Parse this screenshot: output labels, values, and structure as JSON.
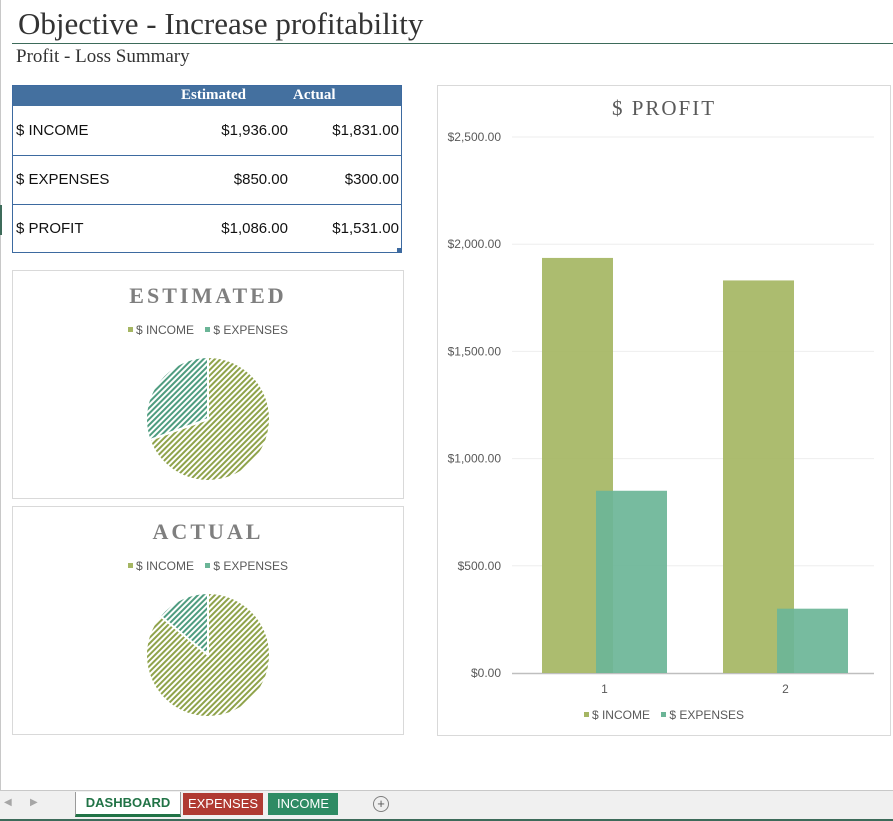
{
  "title": "Objective - Increase profitability",
  "subtitle": "Profit - Loss Summary",
  "summary": {
    "headers": {
      "estimated": "Estimated",
      "actual": "Actual"
    },
    "rows": [
      {
        "label": "$ INCOME",
        "estimated": "$1,936.00",
        "actual": "$1,831.00"
      },
      {
        "label": "$ EXPENSES",
        "estimated": "$850.00",
        "actual": "$300.00"
      },
      {
        "label": "$ PROFIT",
        "estimated": "$1,086.00",
        "actual": "$1,531.00"
      }
    ]
  },
  "colors": {
    "income": "#a5b663",
    "income_hatch": "#8fa34b",
    "expenses": "#6bb597",
    "expenses_hatch": "#4e9c7f",
    "header": "#44709f"
  },
  "pie_estimated": {
    "title": "ESTIMATED",
    "legend": [
      "$ INCOME",
      "$ EXPENSES"
    ]
  },
  "pie_actual": {
    "title": "ACTUAL",
    "legend": [
      "$ INCOME",
      "$ EXPENSES"
    ]
  },
  "bar_chart": {
    "title": "$ PROFIT",
    "legend": [
      "$ INCOME",
      "$ EXPENSES"
    ]
  },
  "chart_data": [
    {
      "type": "pie",
      "title": "ESTIMATED",
      "categories": [
        "$ INCOME",
        "$ EXPENSES"
      ],
      "values": [
        1936,
        850
      ]
    },
    {
      "type": "pie",
      "title": "ACTUAL",
      "categories": [
        "$ INCOME",
        "$ EXPENSES"
      ],
      "values": [
        1831,
        300
      ]
    },
    {
      "type": "bar",
      "title": "$ PROFIT",
      "categories": [
        "1",
        "2"
      ],
      "series": [
        {
          "name": "$ INCOME",
          "values": [
            1936,
            1831
          ]
        },
        {
          "name": "$ EXPENSES",
          "values": [
            850,
            300
          ]
        }
      ],
      "ylim": [
        0,
        2500
      ],
      "yticks": [
        "$0.00",
        "$500.00",
        "$1,000.00",
        "$1,500.00",
        "$2,000.00",
        "$2,500.00"
      ],
      "grid": true,
      "legend_position": "bottom"
    }
  ],
  "tabs": {
    "active": "DASHBOARD",
    "others": [
      "EXPENSES",
      "INCOME"
    ],
    "add_icon": "plus-circle-icon"
  }
}
